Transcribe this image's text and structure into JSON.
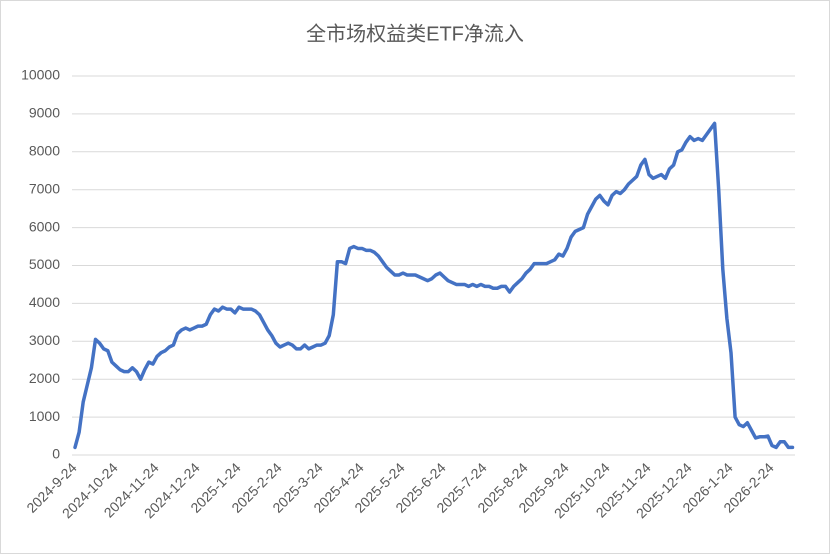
{
  "chart_data": {
    "type": "line",
    "title": "全市场权益类ETF净流入",
    "categories": [
      "2024-9-24",
      null,
      null,
      null,
      null,
      null,
      null,
      null,
      null,
      null,
      "2024-10-24",
      null,
      null,
      null,
      null,
      null,
      null,
      null,
      null,
      null,
      "2024-11-24",
      null,
      null,
      null,
      null,
      null,
      null,
      null,
      null,
      null,
      "2024-12-24",
      null,
      null,
      null,
      null,
      null,
      null,
      null,
      null,
      null,
      "2025-1-24",
      null,
      null,
      null,
      null,
      null,
      null,
      null,
      null,
      null,
      "2025-2-24",
      null,
      null,
      null,
      null,
      null,
      null,
      null,
      null,
      null,
      "2025-3-24",
      null,
      null,
      null,
      null,
      null,
      null,
      null,
      null,
      null,
      "2025-4-24",
      null,
      null,
      null,
      null,
      null,
      null,
      null,
      null,
      null,
      "2025-5-24",
      null,
      null,
      null,
      null,
      null,
      null,
      null,
      null,
      null,
      "2025-6-24",
      null,
      null,
      null,
      null,
      null,
      null,
      null,
      null,
      null,
      "2025-7-24",
      null,
      null,
      null,
      null,
      null,
      null,
      null,
      null,
      null,
      "2025-8-24",
      null,
      null,
      null,
      null,
      null,
      null,
      null,
      null,
      null,
      "2025-9-24",
      null,
      null,
      null,
      null,
      null,
      null,
      null,
      null,
      null,
      "2025-10-24",
      null,
      null,
      null,
      null,
      null,
      null,
      null,
      null,
      null,
      "2025-11-24",
      null,
      null,
      null,
      null,
      null,
      null,
      null,
      null,
      null,
      "2025-12-24",
      null,
      null,
      null,
      null,
      null,
      null,
      null,
      null,
      null,
      "2026-1-24",
      null,
      null,
      null,
      null,
      null,
      null,
      null,
      null,
      null,
      "2026-2-24",
      null,
      null,
      null,
      null,
      null
    ],
    "values": [
      200,
      600,
      1400,
      1850,
      2300,
      3050,
      2950,
      2800,
      2750,
      2450,
      2350,
      2250,
      2200,
      2200,
      2300,
      2200,
      2000,
      2250,
      2450,
      2400,
      2600,
      2700,
      2750,
      2850,
      2900,
      3200,
      3300,
      3350,
      3300,
      3350,
      3400,
      3400,
      3450,
      3700,
      3850,
      3800,
      3900,
      3850,
      3850,
      3750,
      3900,
      3850,
      3850,
      3850,
      3800,
      3700,
      3500,
      3300,
      3150,
      2950,
      2850,
      2900,
      2950,
      2900,
      2800,
      2800,
      2900,
      2800,
      2850,
      2900,
      2900,
      2950,
      3150,
      3700,
      5100,
      5100,
      5050,
      5450,
      5500,
      5450,
      5450,
      5400,
      5400,
      5350,
      5250,
      5100,
      4950,
      4850,
      4750,
      4750,
      4800,
      4750,
      4750,
      4750,
      4700,
      4650,
      4600,
      4650,
      4750,
      4800,
      4700,
      4600,
      4550,
      4500,
      4500,
      4500,
      4450,
      4500,
      4450,
      4500,
      4450,
      4450,
      4400,
      4400,
      4450,
      4450,
      4300,
      4450,
      4550,
      4650,
      4800,
      4900,
      5050,
      5050,
      5050,
      5050,
      5100,
      5150,
      5300,
      5250,
      5450,
      5750,
      5900,
      5950,
      6000,
      6350,
      6550,
      6750,
      6850,
      6700,
      6600,
      6850,
      6950,
      6900,
      7000,
      7150,
      7250,
      7350,
      7650,
      7800,
      7400,
      7300,
      7350,
      7400,
      7300,
      7550,
      7650,
      8000,
      8050,
      8250,
      8400,
      8300,
      8350,
      8300,
      8450,
      8600,
      8750,
      7000,
      4900,
      3600,
      2700,
      1000,
      800,
      750,
      850,
      650,
      450,
      480,
      480,
      500,
      250,
      200,
      350,
      350,
      200,
      200
    ],
    "color": "#4472c4",
    "ylim": [
      0,
      10000
    ],
    "yticks": [
      0,
      1000,
      2000,
      3000,
      4000,
      5000,
      6000,
      7000,
      8000,
      9000,
      10000
    ],
    "grid": true
  }
}
